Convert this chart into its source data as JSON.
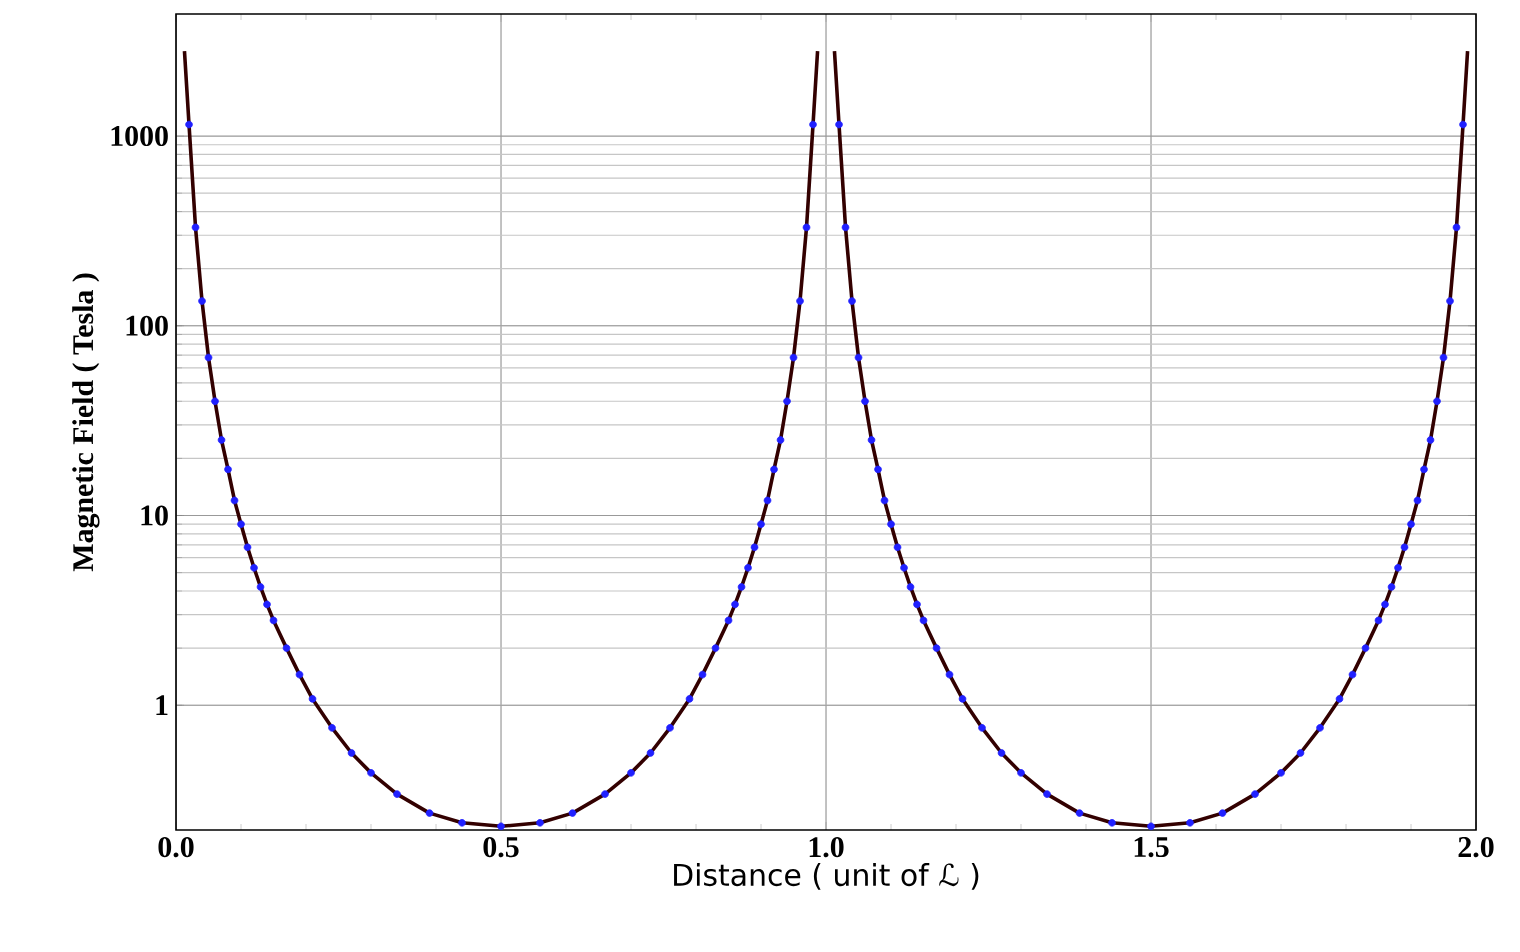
{
  "chart_data": {
    "type": "line",
    "xlabel": "Distance ( unit of ℒ )",
    "ylabel": "Magnetic Field ( Tesla )",
    "log": "y",
    "grid": true,
    "xlim": [
      0,
      2
    ],
    "ylim": [
      0.22,
      4400
    ],
    "xticks": [
      {
        "value": 0,
        "label": "0.0"
      },
      {
        "value": 0.5,
        "label": "0.5"
      },
      {
        "value": 1,
        "label": "1.0"
      },
      {
        "value": 1.5,
        "label": "1.5"
      },
      {
        "value": 2,
        "label": "2.0"
      }
    ],
    "yticks": [
      1,
      10,
      100,
      1000
    ],
    "series": [
      {
        "type": "scatter",
        "color": "#2020ff",
        "marker": "circle",
        "x": [
          0.02,
          0.03,
          0.04,
          0.05,
          0.06,
          0.07,
          0.08,
          0.09,
          0.1,
          0.11,
          0.12,
          0.13,
          0.14,
          0.15,
          0.17,
          0.19,
          0.21,
          0.24,
          0.27,
          0.3,
          0.34,
          0.39,
          0.44,
          0.5,
          0.56,
          0.61,
          0.66,
          0.7,
          0.73,
          0.76,
          0.79,
          0.81,
          0.83,
          0.85,
          0.86,
          0.87,
          0.88,
          0.89,
          0.9,
          0.91,
          0.92,
          0.93,
          0.94,
          0.95,
          0.96,
          0.97,
          0.98,
          1.02,
          1.03,
          1.04,
          1.05,
          1.06,
          1.07,
          1.08,
          1.09,
          1.1,
          1.11,
          1.12,
          1.13,
          1.14,
          1.15,
          1.17,
          1.19,
          1.21,
          1.24,
          1.27,
          1.3,
          1.34,
          1.39,
          1.44,
          1.5,
          1.56,
          1.61,
          1.66,
          1.7,
          1.73,
          1.76,
          1.79,
          1.81,
          1.83,
          1.85,
          1.86,
          1.87,
          1.88,
          1.89,
          1.9,
          1.91,
          1.92,
          1.93,
          1.94,
          1.95,
          1.96,
          1.97,
          1.98
        ],
        "values": [
          1150,
          330,
          135,
          68,
          40,
          25,
          17.5,
          12,
          9,
          6.8,
          5.3,
          4.2,
          3.4,
          2.8,
          2,
          1.45,
          1.08,
          0.76,
          0.56,
          0.44,
          0.34,
          0.27,
          0.24,
          0.23,
          0.24,
          0.27,
          0.34,
          0.44,
          0.56,
          0.76,
          1.08,
          1.45,
          2,
          2.8,
          3.4,
          4.2,
          5.3,
          6.8,
          9,
          12,
          17.5,
          25,
          40,
          68,
          135,
          330,
          1150,
          1150,
          330,
          135,
          68,
          40,
          25,
          17.5,
          12,
          9,
          6.8,
          5.3,
          4.2,
          3.4,
          2.8,
          2,
          1.45,
          1.08,
          0.76,
          0.56,
          0.44,
          0.34,
          0.27,
          0.24,
          0.23,
          0.24,
          0.27,
          0.34,
          0.44,
          0.56,
          0.76,
          1.08,
          1.45,
          2,
          2.8,
          3.4,
          4.2,
          5.3,
          6.8,
          9,
          12,
          17.5,
          25,
          40,
          68,
          135,
          330,
          1150
        ]
      },
      {
        "type": "line",
        "color": "#330000",
        "marker": "none",
        "line_style": "solid",
        "x": [
          0.013,
          0.02,
          0.03,
          0.04,
          0.05,
          0.06,
          0.07,
          0.08,
          0.09,
          0.1,
          0.11,
          0.12,
          0.13,
          0.14,
          0.15,
          0.17,
          0.19,
          0.21,
          0.24,
          0.27,
          0.3,
          0.34,
          0.39,
          0.44,
          0.5,
          0.56,
          0.61,
          0.66,
          0.7,
          0.73,
          0.76,
          0.79,
          0.81,
          0.83,
          0.85,
          0.86,
          0.87,
          0.88,
          0.89,
          0.9,
          0.91,
          0.92,
          0.93,
          0.94,
          0.95,
          0.96,
          0.97,
          0.98,
          0.987,
          1.0,
          1.013,
          1.02,
          1.03,
          1.04,
          1.05,
          1.06,
          1.07,
          1.08,
          1.09,
          1.1,
          1.11,
          1.12,
          1.13,
          1.14,
          1.15,
          1.17,
          1.19,
          1.21,
          1.24,
          1.27,
          1.3,
          1.34,
          1.39,
          1.44,
          1.5,
          1.56,
          1.61,
          1.66,
          1.7,
          1.73,
          1.76,
          1.79,
          1.81,
          1.83,
          1.85,
          1.86,
          1.87,
          1.88,
          1.89,
          1.9,
          1.91,
          1.92,
          1.93,
          1.94,
          1.95,
          1.96,
          1.97,
          1.98,
          1.987
        ],
        "values": [
          2800,
          1150,
          330,
          135,
          68,
          40,
          25,
          17.5,
          12,
          9,
          6.8,
          5.3,
          4.2,
          3.4,
          2.8,
          2,
          1.45,
          1.08,
          0.76,
          0.56,
          0.44,
          0.34,
          0.27,
          0.24,
          0.23,
          0.24,
          0.27,
          0.34,
          0.44,
          0.56,
          0.76,
          1.08,
          1.45,
          2,
          2.8,
          3.4,
          4.2,
          5.3,
          6.8,
          9,
          12,
          17.5,
          25,
          40,
          68,
          135,
          330,
          1150,
          2800,
          null,
          2800,
          1150,
          330,
          135,
          68,
          40,
          25,
          17.5,
          12,
          9,
          6.8,
          5.3,
          4.2,
          3.4,
          2.8,
          2,
          1.45,
          1.08,
          0.76,
          0.56,
          0.44,
          0.34,
          0.27,
          0.24,
          0.23,
          0.24,
          0.27,
          0.34,
          0.44,
          0.56,
          0.76,
          1.08,
          1.45,
          2,
          2.8,
          3.4,
          4.2,
          5.3,
          6.8,
          9,
          12,
          17.5,
          25,
          40,
          68,
          135,
          330,
          1150,
          2800
        ]
      }
    ]
  }
}
